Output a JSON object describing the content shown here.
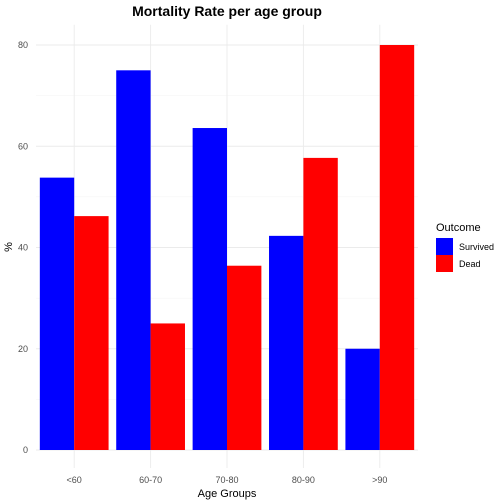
{
  "chart_data": {
    "type": "bar",
    "title": "Mortality Rate per age group",
    "xlabel": "Age Groups",
    "ylabel": "%",
    "categories": [
      "<60",
      "60-70",
      "70-80",
      "80-90",
      ">90"
    ],
    "series": [
      {
        "name": "Survived",
        "color": "#0000ff",
        "values": [
          53.8,
          75.0,
          63.6,
          42.3,
          20.0
        ]
      },
      {
        "name": "Dead",
        "color": "#ff0000",
        "values": [
          46.2,
          25.0,
          36.4,
          57.7,
          80.0
        ]
      }
    ],
    "ylim": [
      0,
      84
    ],
    "yticks": [
      0,
      20,
      40,
      60,
      80
    ],
    "grid": true,
    "legend": {
      "title": "Outcome",
      "placement": "right"
    }
  }
}
